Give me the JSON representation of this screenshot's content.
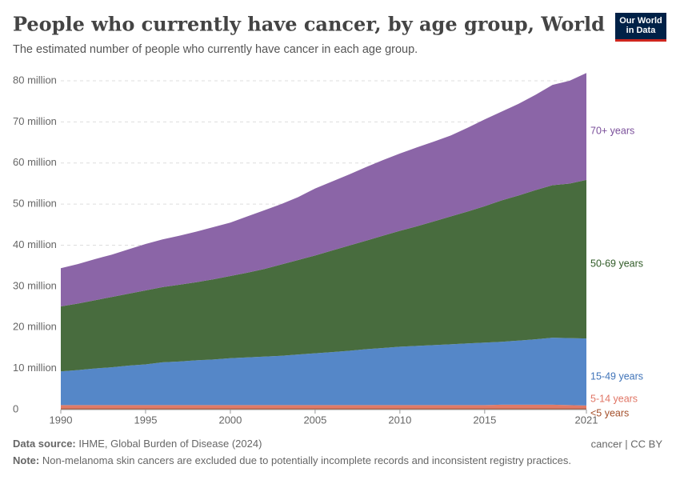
{
  "header": {
    "title": "People who currently have cancer, by age group, World",
    "subtitle": "The estimated number of people who currently have cancer in each age group.",
    "logo": "Our World in Data"
  },
  "chart_data": {
    "type": "stacked-area",
    "x": [
      1990,
      1991,
      1992,
      1993,
      1994,
      1995,
      1996,
      1997,
      1998,
      1999,
      2000,
      2001,
      2002,
      2003,
      2004,
      2005,
      2006,
      2007,
      2008,
      2009,
      2010,
      2011,
      2012,
      2013,
      2014,
      2015,
      2016,
      2017,
      2018,
      2019,
      2020,
      2021
    ],
    "xlim": [
      1990,
      2021
    ],
    "xticks": [
      1990,
      1995,
      2000,
      2005,
      2010,
      2015,
      2021
    ],
    "ylim": [
      0,
      80
    ],
    "yticks": [
      0,
      {
        "value": 10,
        "label": "10 million"
      },
      {
        "value": 20,
        "label": "20 million"
      },
      {
        "value": 30,
        "label": "30 million"
      },
      {
        "value": 40,
        "label": "40 million"
      },
      {
        "value": 50,
        "label": "50 million"
      },
      {
        "value": 60,
        "label": "60 million"
      },
      {
        "value": 70,
        "label": "70 million"
      },
      {
        "value": 80,
        "label": "80 million"
      }
    ],
    "grid": true,
    "series": [
      {
        "name": "<5 years",
        "color": "#b0573a",
        "label_color": "#a4502b",
        "values": [
          0.3,
          0.3,
          0.3,
          0.3,
          0.3,
          0.3,
          0.3,
          0.3,
          0.3,
          0.3,
          0.3,
          0.3,
          0.3,
          0.3,
          0.3,
          0.3,
          0.3,
          0.3,
          0.3,
          0.3,
          0.3,
          0.3,
          0.3,
          0.3,
          0.3,
          0.3,
          0.3,
          0.3,
          0.3,
          0.3,
          0.3,
          0.3
        ]
      },
      {
        "name": "5-14 years",
        "color": "#e07b68",
        "label_color": "#e07565",
        "values": [
          0.8,
          0.8,
          0.8,
          0.8,
          0.8,
          0.8,
          0.8,
          0.8,
          0.8,
          0.8,
          0.8,
          0.8,
          0.8,
          0.8,
          0.8,
          0.8,
          0.8,
          0.8,
          0.8,
          0.8,
          0.8,
          0.8,
          0.8,
          0.8,
          0.8,
          0.8,
          0.9,
          0.9,
          0.9,
          0.9,
          0.8,
          0.7
        ]
      },
      {
        "name": "15-49 years",
        "color": "#5587c8",
        "label_color": "#3f73b8",
        "values": [
          8.2,
          8.5,
          8.9,
          9.2,
          9.6,
          9.9,
          10.4,
          10.6,
          10.9,
          11.1,
          11.4,
          11.6,
          11.8,
          12.0,
          12.3,
          12.6,
          12.9,
          13.2,
          13.6,
          13.9,
          14.2,
          14.4,
          14.6,
          14.8,
          15.0,
          15.2,
          15.3,
          15.6,
          15.9,
          16.3,
          16.3,
          16.3
        ]
      },
      {
        "name": "50-69 years",
        "color": "#486c3e",
        "label_color": "#2f5a26",
        "values": [
          15.8,
          16.2,
          16.6,
          17.1,
          17.5,
          18.0,
          18.3,
          18.7,
          19.0,
          19.5,
          20.0,
          20.6,
          21.3,
          22.2,
          23.0,
          23.8,
          24.7,
          25.6,
          26.4,
          27.3,
          28.2,
          29.1,
          30.1,
          31.1,
          32.1,
          33.2,
          34.4,
          35.3,
          36.3,
          37.1,
          37.6,
          38.6
        ]
      },
      {
        "name": "70+ years",
        "color": "#8b65a7",
        "label_color": "#7a4f9a",
        "values": [
          9.3,
          9.6,
          10.0,
          10.3,
          10.8,
          11.3,
          11.6,
          11.9,
          12.3,
          12.7,
          13.0,
          13.7,
          14.3,
          14.7,
          15.3,
          16.3,
          16.8,
          17.3,
          17.9,
          18.4,
          18.8,
          19.2,
          19.4,
          19.7,
          20.4,
          21.1,
          21.6,
          22.3,
          23.2,
          24.4,
          25.0,
          26.0
        ]
      }
    ]
  },
  "footer": {
    "source_label": "Data source:",
    "source": "IHME, Global Burden of Disease (2024)",
    "license": "cancer | CC BY",
    "note_label": "Note:",
    "note": "Non-melanoma skin cancers are excluded due to potentially incomplete records and inconsistent registry practices."
  }
}
